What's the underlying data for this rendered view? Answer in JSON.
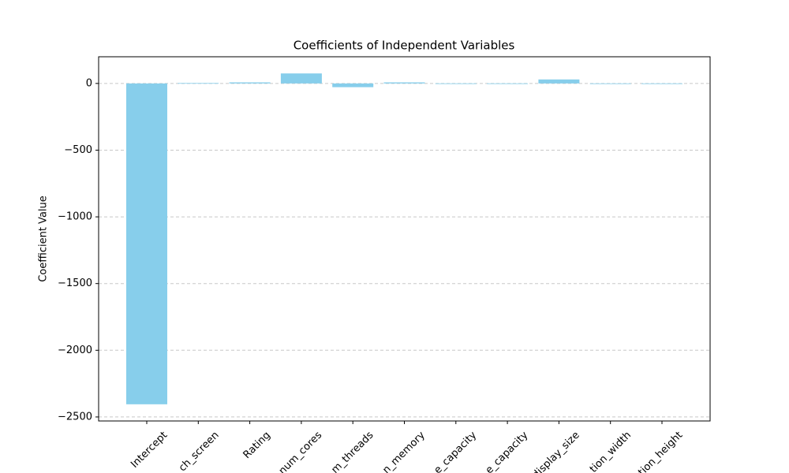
{
  "chart_data": {
    "type": "bar",
    "title": "Coefficients of Independent Variables",
    "y_label": "Coefficient Value",
    "categories": [
      "Intercept",
      "ch_screen",
      "Rating",
      "num_cores",
      "m_threads",
      "n_memory",
      "e_capacity",
      "e_capacity",
      "display_size",
      "tion_width",
      "tion_height"
    ],
    "values": [
      -2405,
      3,
      8,
      75,
      -28,
      8,
      0.5,
      0.5,
      30,
      0.3,
      0.3
    ],
    "color": "#87ceeb",
    "ylim": [
      -2530,
      200
    ],
    "yticks": [
      {
        "value": 0,
        "label": "0"
      },
      {
        "value": -500,
        "label": "−500"
      },
      {
        "value": -1000,
        "label": "−1000"
      },
      {
        "value": -1500,
        "label": "−1500"
      },
      {
        "value": -2000,
        "label": "−2000"
      },
      {
        "value": -2500,
        "label": "−2500"
      }
    ],
    "grid": true
  }
}
